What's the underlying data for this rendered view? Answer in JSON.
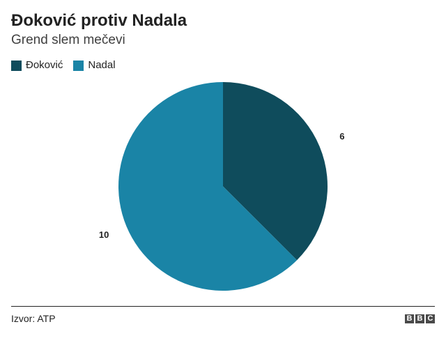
{
  "chart_data": {
    "type": "pie",
    "title": "Đoković protiv Nadala",
    "subtitle": "Grend slem mečevi",
    "series": [
      {
        "name": "Đoković",
        "value": 6,
        "color": "#0f4c5c"
      },
      {
        "name": "Nadal",
        "value": 10,
        "color": "#1a84a6"
      }
    ],
    "legend_position": "top-left"
  },
  "footer": {
    "source": "Izvor: ATP",
    "logo": [
      "B",
      "B",
      "C"
    ]
  }
}
